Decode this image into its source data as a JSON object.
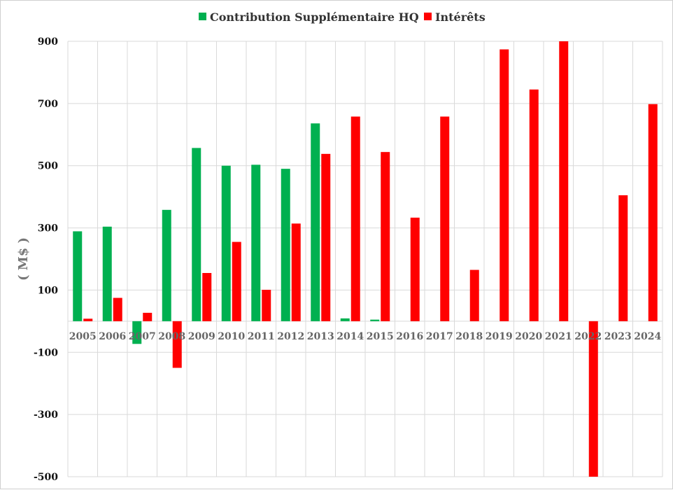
{
  "chart_data": {
    "type": "bar",
    "title": "",
    "xlabel": "",
    "ylabel": "( M$ )",
    "ylim": [
      -500,
      900
    ],
    "yticks": [
      -500,
      -300,
      -100,
      100,
      300,
      500,
      700,
      900
    ],
    "grid": true,
    "legend_position": "top-center",
    "categories": [
      "2005",
      "2006",
      "2007",
      "2008",
      "2009",
      "2010",
      "2011",
      "2012",
      "2013",
      "2014",
      "2015",
      "2016",
      "2017",
      "2018",
      "2019",
      "2020",
      "2021",
      "2022",
      "2023",
      "2024"
    ],
    "series": [
      {
        "name": "Contribution Supplémentaire HQ",
        "color": "#00b050",
        "values": [
          289,
          304,
          -73,
          358,
          557,
          500,
          503,
          490,
          636,
          9,
          5,
          0,
          0,
          0,
          0,
          0,
          0,
          0,
          0,
          0
        ]
      },
      {
        "name": "Intérêts",
        "color": "#ff0000",
        "values": [
          8,
          75,
          27,
          -150,
          155,
          255,
          101,
          314,
          538,
          658,
          544,
          333,
          658,
          165,
          874,
          745,
          900,
          -500,
          405,
          698
        ]
      }
    ]
  }
}
